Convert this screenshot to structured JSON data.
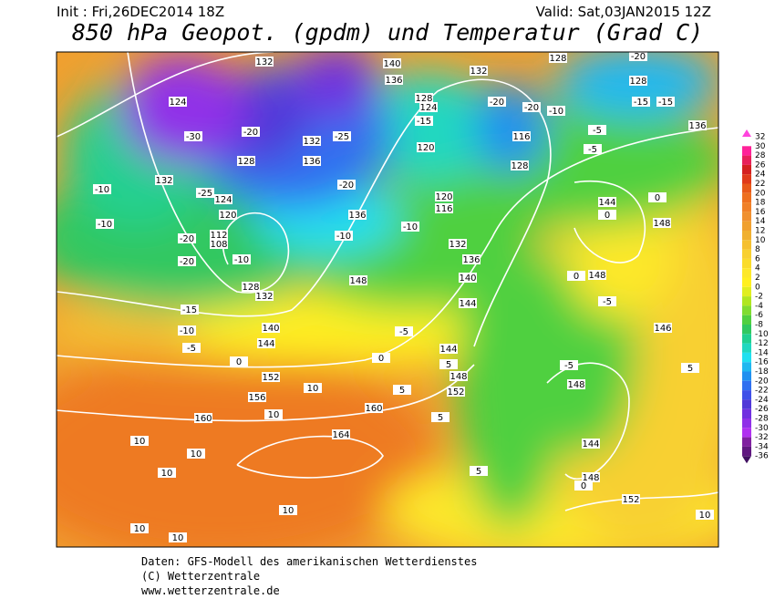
{
  "header": {
    "init": "Init : Fri,26DEC2014 18Z",
    "valid": "Valid: Sat,03JAN2015 12Z",
    "title": "850 hPa Geopot. (gpdm) und Temperatur (Grad C)"
  },
  "colorbar": {
    "values": [
      32,
      30,
      28,
      26,
      24,
      22,
      20,
      18,
      16,
      14,
      12,
      10,
      8,
      6,
      4,
      2,
      0,
      -2,
      -4,
      -6,
      -8,
      -10,
      -12,
      -14,
      -16,
      -18,
      -20,
      -22,
      -24,
      -26,
      -28,
      -30,
      -32,
      -34,
      -36
    ],
    "colors": [
      "#ff44dd",
      "#ff2299",
      "#e8205a",
      "#d42020",
      "#e03a1a",
      "#e85a1a",
      "#ee7020",
      "#f08028",
      "#f09030",
      "#f0a030",
      "#f0b030",
      "#f5c030",
      "#f8d030",
      "#fadc2a",
      "#fde82a",
      "#fff020",
      "#e0ee20",
      "#b0e620",
      "#80dc30",
      "#50d040",
      "#30c860",
      "#20d090",
      "#20d8c0",
      "#20e0f0",
      "#20b8f0",
      "#2090f0",
      "#3070f0",
      "#4050e8",
      "#5038d8",
      "#7030e0",
      "#9030e8",
      "#b030f0",
      "#8020a0",
      "#601880",
      "#401060"
    ]
  },
  "map": {
    "contour_labels": [
      "132",
      "140",
      "136",
      "132",
      "128",
      "128",
      "124",
      "-15",
      "124",
      "-30",
      "128",
      "-25",
      "132",
      "-20",
      "-25",
      "136",
      "132",
      "-20",
      "120",
      "116",
      "128",
      "-10",
      "-10",
      "124",
      "120",
      "112",
      "108",
      "-10",
      "128",
      "132",
      "-20",
      "-20",
      "-15",
      "-10",
      "-5",
      "136",
      "-10",
      "-10",
      "148",
      "120",
      "116",
      "132",
      "136",
      "140",
      "144",
      "-5",
      "0",
      "5",
      "144",
      "148",
      "152",
      "5",
      "160",
      "164",
      "160",
      "156",
      "152",
      "140",
      "144",
      "0",
      "10",
      "10",
      "10",
      "10",
      "10",
      "10",
      "10",
      "10",
      "5",
      "5",
      "144",
      "0",
      "148",
      "0",
      "148",
      "0",
      "-5",
      "146",
      "-5",
      "148",
      "5",
      "144",
      "148",
      "0",
      "152",
      "10",
      "136",
      "-15",
      "-15",
      "-10",
      "-5",
      "-5",
      "-20",
      "-20",
      "-20",
      "128"
    ]
  },
  "footer": {
    "lines": [
      "Daten: GFS-Modell des amerikanischen Wetterdienstes",
      "(C) Wetterzentrale",
      "www.wetterzentrale.de"
    ]
  }
}
